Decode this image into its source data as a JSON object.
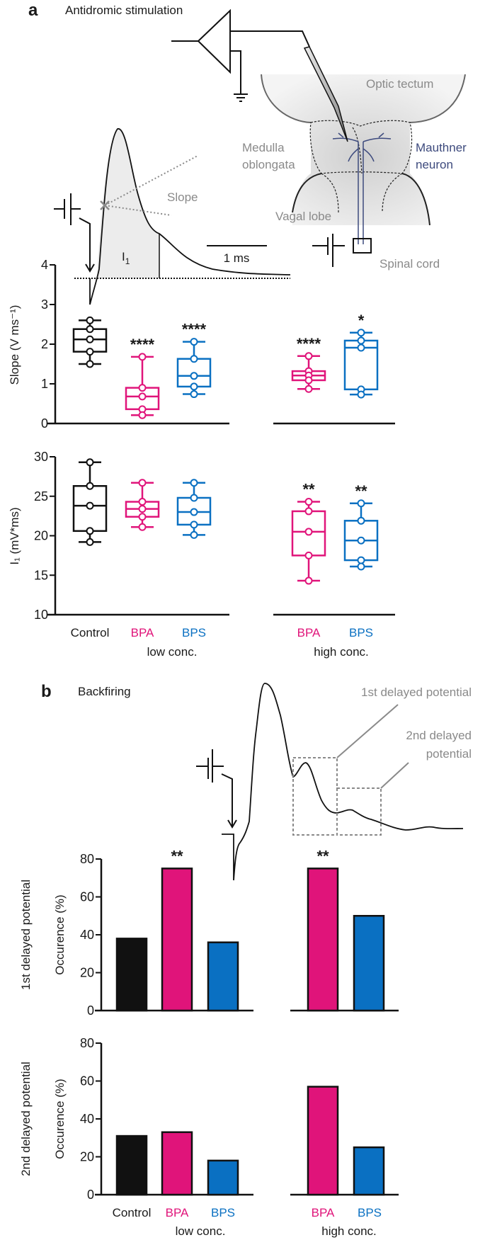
{
  "figure": {
    "panel_a_letter": "a",
    "panel_a_title": "Antidromic stimulation",
    "panel_b_letter": "b",
    "panel_b_title": "Backfiring"
  },
  "diagram": {
    "optic_tectum": "Optic tectum",
    "medulla_line1": "Medulla",
    "medulla_line2": "oblongata",
    "mauthner_line1": "Mauthner",
    "mauthner_line2": "neuron",
    "vagal_lobe": "Vagal lobe",
    "spinal_cord": "Spinal cord",
    "slope": "Slope",
    "integral": "I",
    "integral_sub": "1",
    "scale_bar": "1 ms"
  },
  "backfiring_trace": {
    "first_label": "1st delayed potential",
    "second_label_line1": "2nd delayed",
    "second_label_line2": "potential"
  },
  "x_labels": {
    "control": "Control",
    "bpa": "BPA",
    "bps": "BPS",
    "low": "low conc.",
    "high": "high conc."
  },
  "colors": {
    "control": "#111111",
    "bpa": "#e0147a",
    "bps": "#0a70c2",
    "annotation_gray": "#8a8a8a",
    "neuron": "#3d4a7d"
  },
  "chart_data": [
    {
      "type": "box",
      "title": "",
      "ylabel": "Slope (V ms⁻¹)",
      "ylim": [
        0,
        4
      ],
      "yticks": [
        0,
        1,
        2,
        3,
        4
      ],
      "categories": [
        "Control",
        "BPA low conc.",
        "BPS low conc.",
        "BPA high conc.",
        "BPS high conc."
      ],
      "series": [
        {
          "name": "Control",
          "whisker_low": 1.5,
          "q1": 1.81,
          "median": 2.12,
          "q3": 2.38,
          "whisker_high": 2.6,
          "annotation": ""
        },
        {
          "name": "BPA low",
          "whisker_low": 0.21,
          "q1": 0.36,
          "median": 0.68,
          "q3": 0.9,
          "whisker_high": 1.68,
          "annotation": "****"
        },
        {
          "name": "BPS low",
          "whisker_low": 0.74,
          "q1": 0.93,
          "median": 1.2,
          "q3": 1.63,
          "whisker_high": 2.06,
          "annotation": "****"
        },
        {
          "name": "BPA high",
          "whisker_low": 0.87,
          "q1": 1.09,
          "median": 1.21,
          "q3": 1.32,
          "whisker_high": 1.7,
          "annotation": "****"
        },
        {
          "name": "BPS high",
          "whisker_low": 0.73,
          "q1": 0.86,
          "median": 1.91,
          "q3": 2.09,
          "whisker_high": 2.29,
          "annotation": "*"
        }
      ]
    },
    {
      "type": "box",
      "title": "",
      "ylabel": "I₁ (mV*ms)",
      "ylim": [
        10,
        30
      ],
      "yticks": [
        10,
        15,
        20,
        25,
        30
      ],
      "categories": [
        "Control",
        "BPA low conc.",
        "BPS low conc.",
        "BPA high conc.",
        "BPS high conc."
      ],
      "series": [
        {
          "name": "Control",
          "whisker_low": 19.2,
          "q1": 20.6,
          "median": 23.8,
          "q3": 26.3,
          "whisker_high": 29.3,
          "annotation": ""
        },
        {
          "name": "BPA low",
          "whisker_low": 21.1,
          "q1": 22.4,
          "median": 23.4,
          "q3": 24.3,
          "whisker_high": 26.7,
          "annotation": ""
        },
        {
          "name": "BPS low",
          "whisker_low": 20.1,
          "q1": 21.4,
          "median": 23.0,
          "q3": 24.8,
          "whisker_high": 26.7,
          "annotation": ""
        },
        {
          "name": "BPA high",
          "whisker_low": 14.3,
          "q1": 17.5,
          "median": 20.5,
          "q3": 23.1,
          "whisker_high": 24.3,
          "annotation": "**"
        },
        {
          "name": "BPS high",
          "whisker_low": 16.1,
          "q1": 16.9,
          "median": 19.4,
          "q3": 21.9,
          "whisker_high": 24.1,
          "annotation": "**"
        }
      ]
    },
    {
      "type": "bar",
      "title": "1st delayed potential",
      "ylabel": "Occurence (%)",
      "ylim": [
        0,
        80
      ],
      "yticks": [
        0,
        20,
        40,
        60,
        80
      ],
      "categories": [
        "Control",
        "BPA low conc.",
        "BPS low conc.",
        "BPA high conc.",
        "BPS high conc."
      ],
      "values": [
        38,
        75,
        36,
        75,
        50
      ],
      "annotations": [
        "",
        "**",
        "",
        "**",
        ""
      ]
    },
    {
      "type": "bar",
      "title": "2nd delayed potential",
      "ylabel": "Occurence (%)",
      "ylim": [
        0,
        80
      ],
      "yticks": [
        0,
        20,
        40,
        60,
        80
      ],
      "categories": [
        "Control",
        "BPA low conc.",
        "BPS low conc.",
        "BPA high conc.",
        "BPS high conc."
      ],
      "values": [
        31,
        33,
        18,
        57,
        25
      ],
      "annotations": [
        "",
        "",
        "",
        "",
        ""
      ]
    }
  ]
}
